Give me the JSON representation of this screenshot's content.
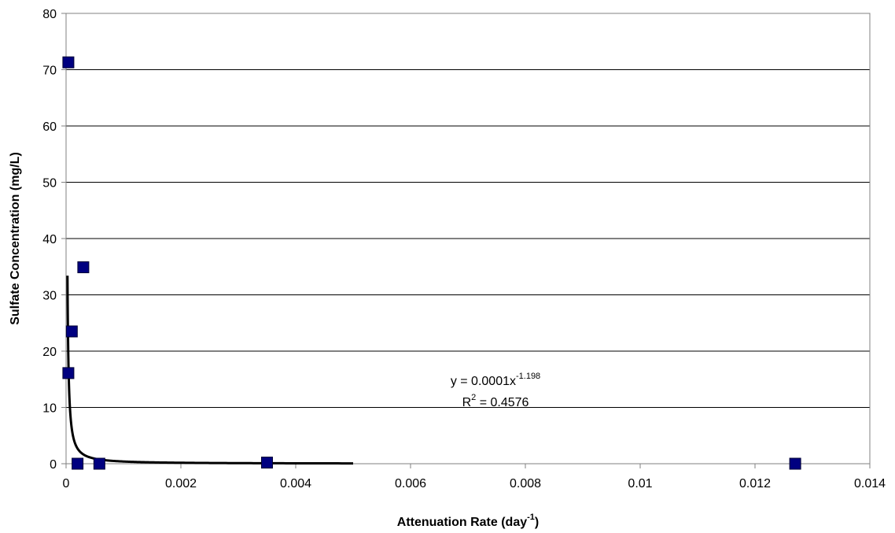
{
  "chart_data": {
    "type": "scatter",
    "xlabel": {
      "base": "Attenuation Rate (day",
      "sup": "-1",
      "tail": ")"
    },
    "ylabel": "Sulfate Concentration (mg/L)",
    "xlim": [
      0,
      0.014
    ],
    "ylim": [
      0,
      80
    ],
    "x_ticks": [
      "0",
      "0.002",
      "0.004",
      "0.006",
      "0.008",
      "0.01",
      "0.012",
      "0.014"
    ],
    "x_tick_values": [
      0,
      0.002,
      0.004,
      0.006,
      0.008,
      0.01,
      0.012,
      0.014
    ],
    "y_ticks": [
      "0",
      "10",
      "20",
      "30",
      "40",
      "50",
      "60",
      "70",
      "80"
    ],
    "y_tick_values": [
      0,
      10,
      20,
      30,
      40,
      50,
      60,
      70,
      80
    ],
    "grid": "horizontal",
    "legend": "none",
    "marker_color": "#000080",
    "trend_color": "#000000",
    "points": [
      {
        "x": 4e-05,
        "y": 71.3
      },
      {
        "x": 4e-05,
        "y": 16.1
      },
      {
        "x": 0.0001,
        "y": 23.5
      },
      {
        "x": 0.0003,
        "y": 34.9
      },
      {
        "x": 0.0002,
        "y": 0.0
      },
      {
        "x": 0.00058,
        "y": 0.0
      },
      {
        "x": 0.0035,
        "y": 0.2
      },
      {
        "x": 0.0127,
        "y": 0.0
      }
    ],
    "trendline": {
      "type": "power",
      "a": 0.0001,
      "b": -1.198,
      "x_start": 2.45e-05,
      "x_end": 0.005
    },
    "equation": {
      "prefix": "y = 0.0001x",
      "exponent": "-1.198",
      "r2_prefix": "R",
      "r2_sup": "2",
      "r2_value": " = 0.4576"
    }
  }
}
